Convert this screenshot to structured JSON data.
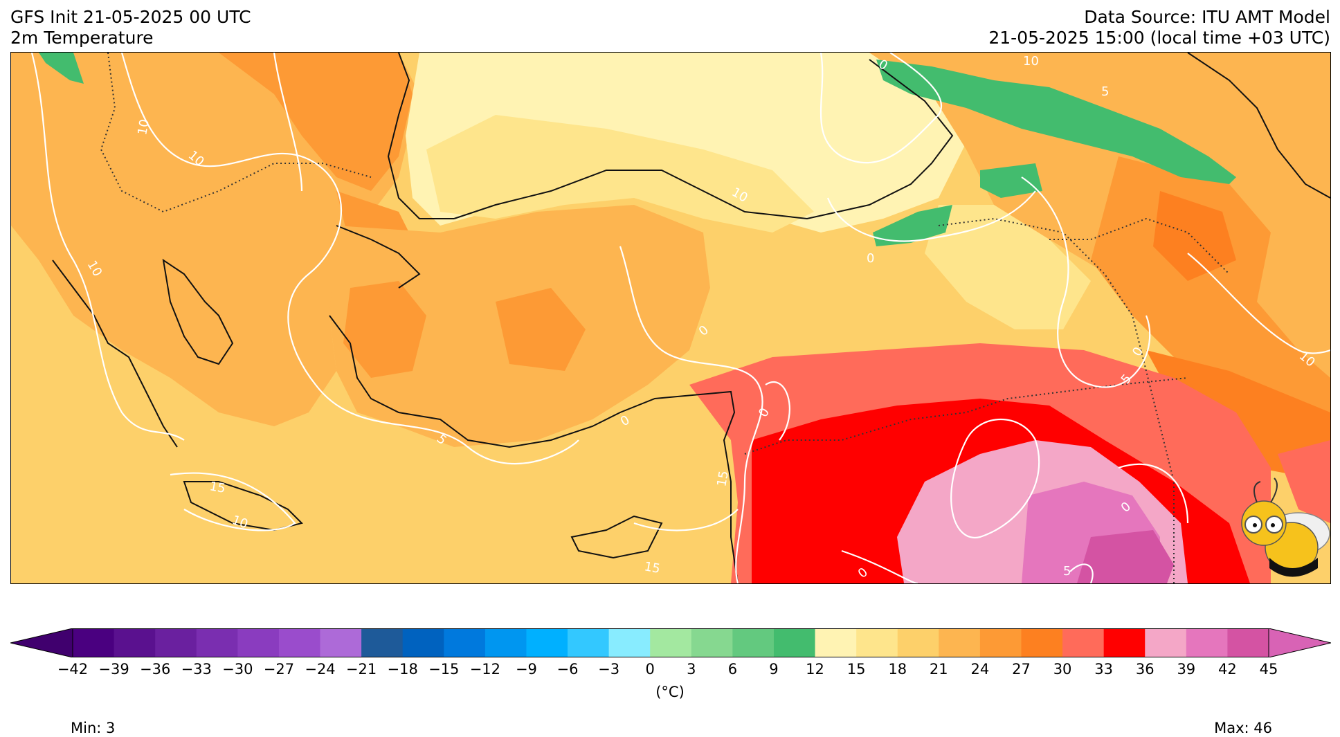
{
  "header": {
    "init_line": "GFS Init 21-05-2025 00 UTC",
    "variable_line": "2m Temperature",
    "source_line": "Data Source: ITU AMT Model",
    "valid_line": "21-05-2025 15:00 (local time +03 UTC)"
  },
  "map": {
    "region": "Greece, Turkey, Cyprus, Levant, Caucasus",
    "contour_labels": [
      "10",
      "10",
      "10",
      "10",
      "10",
      "10",
      "5",
      "5",
      "5",
      "5",
      "0",
      "0",
      "0",
      "0",
      "0",
      "0",
      "0",
      "0",
      "15",
      "15",
      "15",
      "10"
    ],
    "mascot_icon": "bee-mascot-icon"
  },
  "colorbar": {
    "ticks": [
      "−42",
      "−39",
      "−36",
      "−33",
      "−30",
      "−27",
      "−24",
      "−21",
      "−18",
      "−15",
      "−12",
      "−9",
      "−6",
      "−3",
      "0",
      "3",
      "6",
      "9",
      "12",
      "15",
      "18",
      "21",
      "24",
      "27",
      "30",
      "33",
      "36",
      "39",
      "42",
      "45"
    ],
    "colors": [
      "#4a0080",
      "#5a118f",
      "#6a209f",
      "#7a2eb0",
      "#8a3cbf",
      "#9a4ccc",
      "#ad6ad8",
      "#1e5a99",
      "#0062bf",
      "#0079dd",
      "#0096f0",
      "#00b0ff",
      "#33c8ff",
      "#88ecff",
      "#a3e8a0",
      "#86d890",
      "#63c97f",
      "#43bc6e",
      "#fff3b3",
      "#fee58c",
      "#fdd06a",
      "#fdb550",
      "#fd9a35",
      "#fd8020",
      "#ff6b5a",
      "#ff0000",
      "#f4a7c7",
      "#e576bd",
      "#d453a3"
    ],
    "under_color": "#40006e",
    "over_color": "#d863b5",
    "unit": "(°C)"
  },
  "stats": {
    "min_label": "Min: 3",
    "max_label": "Max: 46"
  }
}
